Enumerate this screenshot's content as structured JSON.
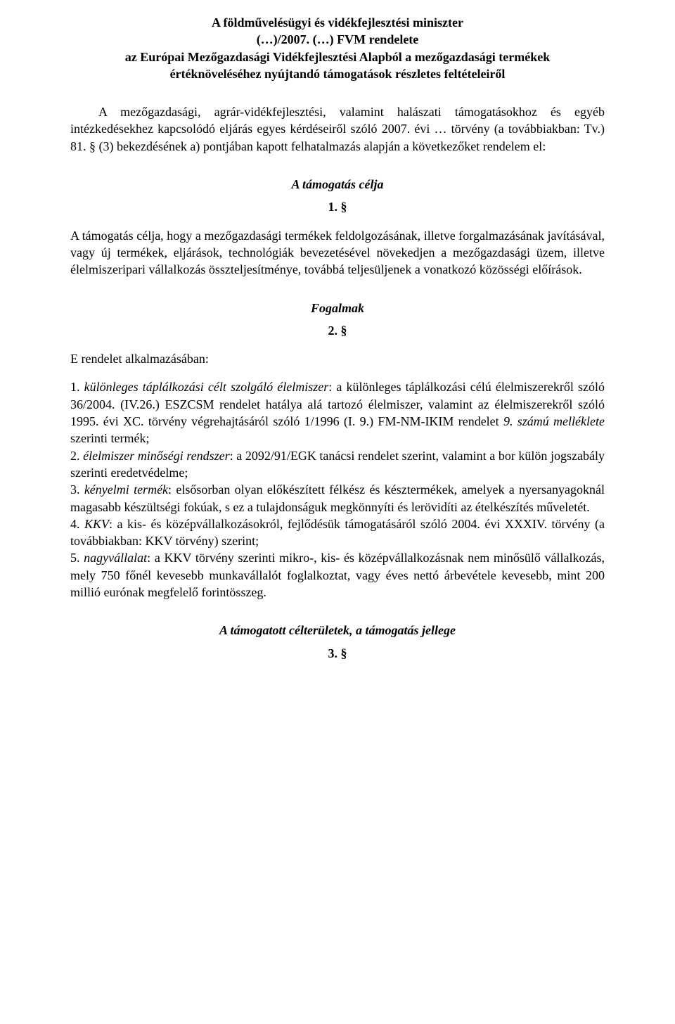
{
  "header": {
    "line1": "A földművelésügyi és vidékfejlesztési miniszter",
    "line2": "(…)/2007. (…) FVM rendelete",
    "line3": "az Európai Mezőgazdasági Vidékfejlesztési Alapból a mezőgazdasági termékek",
    "line4": "értéknöveléséhez nyújtandó támogatások részletes feltételeiről"
  },
  "intro": "A mezőgazdasági, agrár-vidékfejlesztési, valamint halászati támogatásokhoz és egyéb intézkedésekhez kapcsolódó eljárás egyes kérdéseiről szóló 2007. évi … törvény (a továbbiakban: Tv.) 81. § (3) bekezdésének a) pontjában kapott felhatalmazás alapján a következőket rendelem el:",
  "s1": {
    "heading": "A támogatás célja",
    "number": "1. §",
    "body": "A támogatás célja, hogy a mezőgazdasági termékek feldolgozásának, illetve forgalmazásának javításával, vagy új termékek, eljárások, technológiák bevezetésével növekedjen a mezőgazdasági üzem, illetve élelmiszeripari vállalkozás összteljesítménye, továbbá teljesüljenek a vonatkozó közösségi előírások."
  },
  "s2": {
    "heading": "Fogalmak",
    "number": "2. §",
    "lead": "E rendelet alkalmazásában:",
    "d1a": "1.    ",
    "d1_term": "különleges táplálkozási célt szolgáló élelmiszer",
    "d1b": ": a különleges táplálkozási célú élelmiszerekről szóló 36/2004. (IV.26.) ESZCSM rendelet hatálya alá tartozó élelmiszer, valamint az élelmiszerekről szóló 1995. évi XC. törvény végrehajtásáról szóló 1/1996 (I. 9.) FM-NM-IKIM rendelet ",
    "d1_it": "9. számú melléklete",
    "d1c": " szerinti termék;",
    "d2a": "2.    ",
    "d2_term": "élelmiszer minőségi rendszer",
    "d2b": ": a 2092/91/EGK tanácsi rendelet szerint, valamint a bor külön jogszabály szerinti eredetvédelme;",
    "d3a": "3.    ",
    "d3_term": "kényelmi termék",
    "d3b": ": elsősorban olyan előkészített félkész és késztermékek, amelyek a nyersanyagoknál magasabb készültségi fokúak, s ez a tulajdonságuk megkönnyíti és lerövidíti az ételkészítés műveletét.",
    "d4a": "4.    ",
    "d4_term": "KKV",
    "d4b": ": a kis- és középvállalkozásokról, fejlődésük támogatásáról szóló 2004. évi XXXIV. törvény (a továbbiakban: KKV törvény) szerint;",
    "d5a": "5.    ",
    "d5_term": "nagyvállalat",
    "d5b": ": a KKV törvény szerinti mikro-, kis- és középvállalkozásnak nem minősülő vállalkozás, mely 750 főnél kevesebb munkavállalót foglalkoztat, vagy éves nettó árbevétele kevesebb, mint 200 millió eurónak megfelelő forintösszeg."
  },
  "s3": {
    "heading": "A támogatott célterületek, a támogatás jellege",
    "number": "3. §"
  }
}
